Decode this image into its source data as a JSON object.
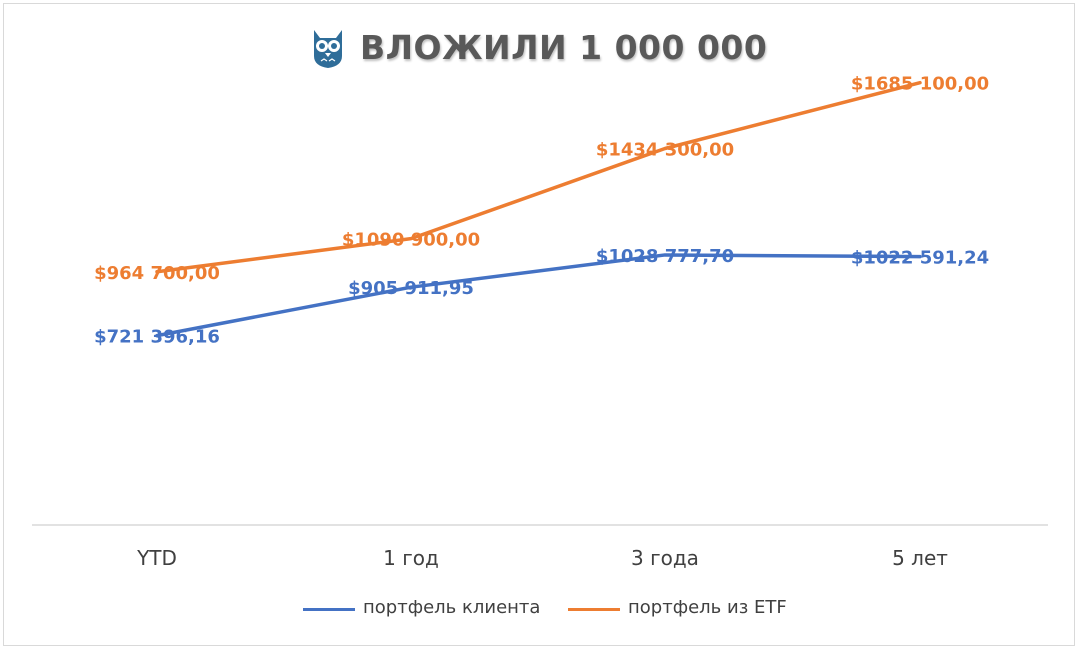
{
  "title": "ВЛОЖИЛИ 1 000 000",
  "logo_icon": "owl-icon",
  "colors": {
    "client": "#4472C4",
    "etf": "#ED7D31",
    "axis": "#d9d9d9",
    "title": "#595959"
  },
  "legend": {
    "client_label": "портфель клиента",
    "etf_label": "портфель из ETF"
  },
  "chart_data": {
    "type": "line",
    "title": "ВЛОЖИЛИ 1 000 000",
    "categories": [
      "YTD",
      "1 год",
      "3 года",
      "5 лет"
    ],
    "series": [
      {
        "name": "портфель клиента",
        "values": [
          721396.16,
          905911.95,
          1028777.7,
          1022591.24
        ],
        "labels": [
          "$721 396,16",
          "$905 911,95",
          "$1028 777,70",
          "$1022 591,24"
        ]
      },
      {
        "name": "портфель из ETF",
        "values": [
          964700.0,
          1090900.0,
          1434300.0,
          1685100.0
        ],
        "labels": [
          "$964 700,00",
          "$1090 900,00",
          "$1434 300,00",
          "$1685 100,00"
        ]
      }
    ],
    "legend_position": "bottom",
    "grid": false
  }
}
